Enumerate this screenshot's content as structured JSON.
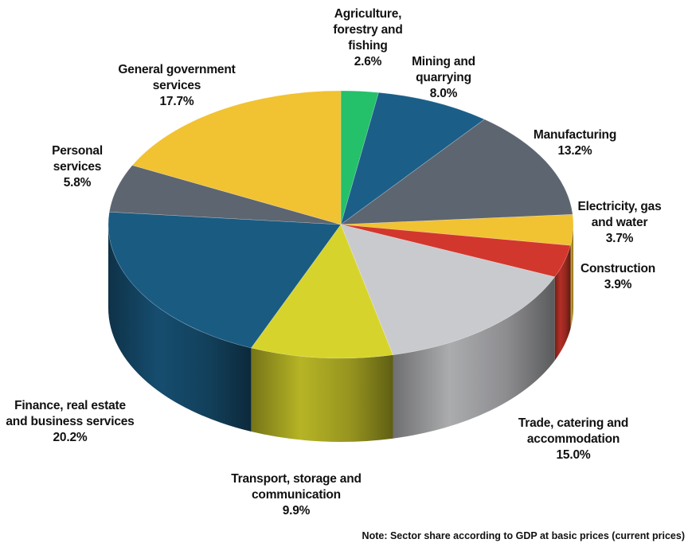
{
  "chart_data": {
    "type": "pie",
    "categories": [
      "Agriculture, forestry and fishing",
      "Mining and quarrying",
      "Manufacturing",
      "Electricity, gas and water",
      "Construction",
      "Trade, catering and accommodation",
      "Transport, storage and communication",
      "Finance, real estate and business services",
      "Personal services",
      "General government services"
    ],
    "values": [
      2.6,
      8.0,
      13.2,
      3.7,
      3.9,
      15.0,
      9.9,
      20.2,
      5.8,
      17.7
    ],
    "value_labels": [
      "2.6%",
      "8.0%",
      "13.2%",
      "3.7%",
      "3.9%",
      "15.0%",
      "9.9%",
      "20.2%",
      "5.8%",
      "17.7%"
    ],
    "colors": [
      "#25c06a",
      "#1b5f88",
      "#5d6570",
      "#f1c232",
      "#d2372d",
      "#c9cacd",
      "#d6d42c",
      "#1a5b82",
      "#5d6570",
      "#f1c232"
    ],
    "annotation": "Note: Sector share according to GDP at basic prices (current prices)"
  }
}
